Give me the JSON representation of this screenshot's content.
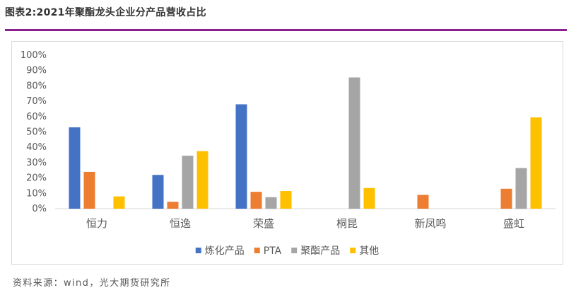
{
  "figure": {
    "title": "图表2:2021年聚酯龙头企业分产品营收占比",
    "source": "资料来源：wind，光大期货研究所",
    "rule_color": "#8b1f8d"
  },
  "chart_data": {
    "type": "bar",
    "title": "",
    "xlabel": "",
    "ylabel": "",
    "categories": [
      "恒力",
      "恒逸",
      "荣盛",
      "桐昆",
      "新凤鸣",
      "盛虹"
    ],
    "ylim": [
      0,
      100
    ],
    "yticks": [
      "0%",
      "10%",
      "20%",
      "30%",
      "40%",
      "50%",
      "60%",
      "70%",
      "80%",
      "90%",
      "100%"
    ],
    "grid": false,
    "legend_position": "bottom",
    "series": [
      {
        "name": "炼化产品",
        "color": "#4472c4",
        "values": [
          53,
          22,
          68,
          null,
          null,
          null
        ]
      },
      {
        "name": "PTA",
        "color": "#ed7d31",
        "values": [
          24,
          4.5,
          11,
          null,
          9,
          13
        ]
      },
      {
        "name": "聚酯产品",
        "color": "#a5a5a5",
        "values": [
          null,
          34.5,
          7.5,
          85.5,
          null,
          26.5
        ]
      },
      {
        "name": "其他",
        "color": "#ffc000",
        "values": [
          8,
          37.5,
          11.5,
          13.5,
          null,
          59.5
        ]
      }
    ]
  }
}
